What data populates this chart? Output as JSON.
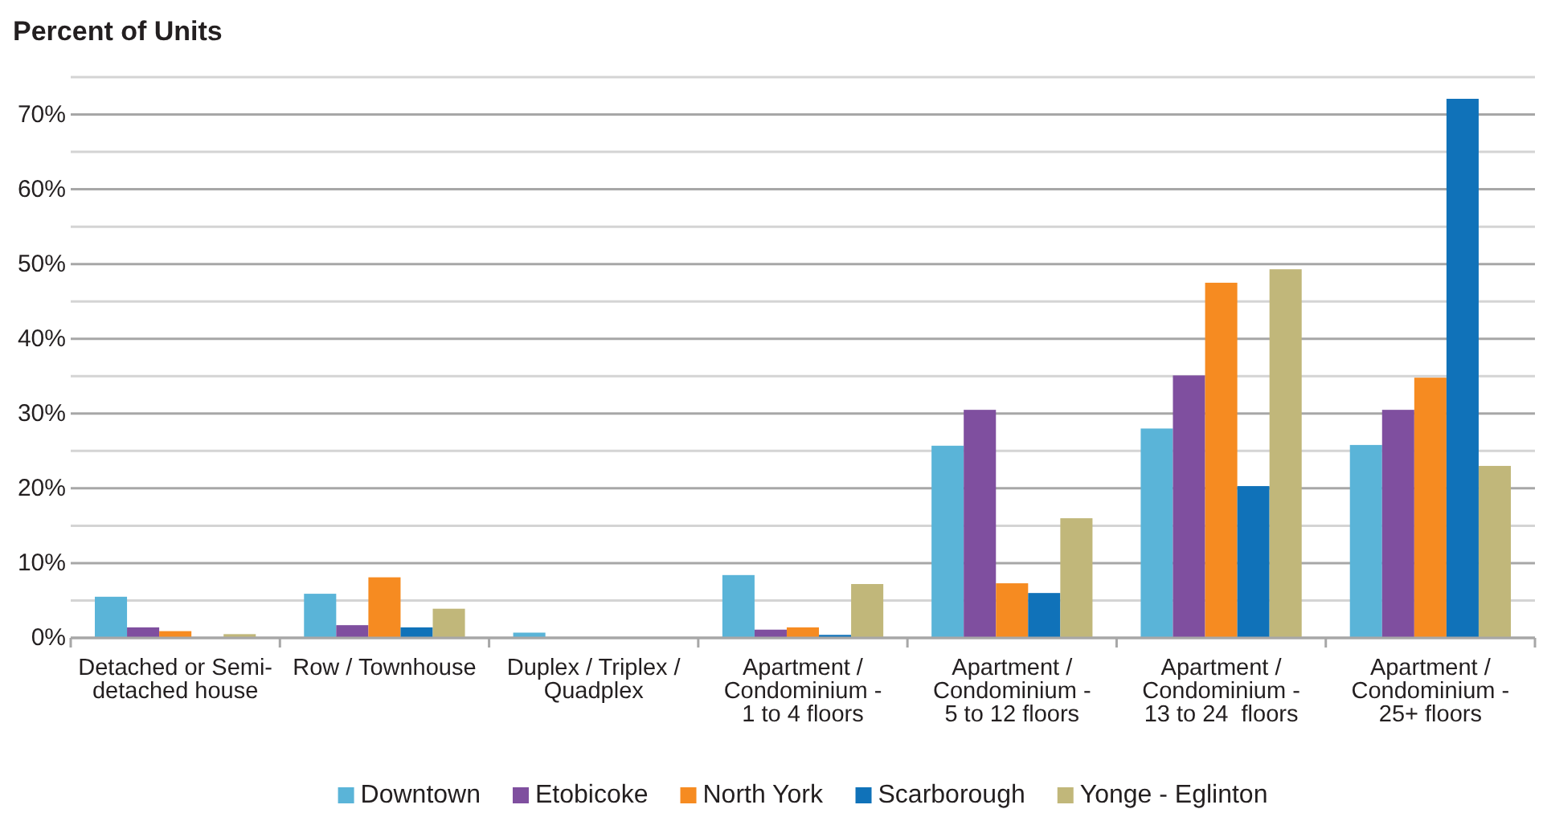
{
  "chart_data": {
    "type": "bar",
    "title": "Percent of Units",
    "categories": [
      "Detached or Semi-\ndetached house",
      "Row / Townhouse",
      "Duplex / Triplex /\nQuadplex",
      "Apartment /\nCondominium -\n1 to 4 floors",
      "Apartment /\nCondominium -\n5 to 12 floors",
      "Apartment /\nCondominium -\n13 to 24  floors",
      "Apartment /\nCondominium -\n25+ floors"
    ],
    "series": [
      {
        "name": "Downtown",
        "color": "#5ab4d8",
        "values": [
          5.5,
          5.9,
          0.7,
          8.4,
          25.7,
          28.0,
          25.8
        ]
      },
      {
        "name": "Etobicoke",
        "color": "#7f4f9f",
        "values": [
          1.4,
          1.7,
          0,
          1.1,
          30.5,
          35.1,
          30.5
        ]
      },
      {
        "name": "North York",
        "color": "#f68b21",
        "values": [
          0.9,
          8.1,
          0,
          1.4,
          7.3,
          47.5,
          34.8
        ]
      },
      {
        "name": "Scarborough",
        "color": "#1072b9",
        "values": [
          0,
          1.4,
          0,
          0.4,
          6.0,
          20.3,
          72.1
        ]
      },
      {
        "name": "Yonge - Eglinton",
        "color": "#c1b77a",
        "values": [
          0.5,
          3.9,
          0,
          7.2,
          16.0,
          49.3,
          23.0
        ]
      }
    ],
    "ylim": [
      0,
      75
    ],
    "yticks": [
      {
        "value": 0,
        "label": "0%"
      },
      {
        "value": 5,
        "label": null
      },
      {
        "value": 10,
        "label": "10%"
      },
      {
        "value": 15,
        "label": null
      },
      {
        "value": 20,
        "label": "20%"
      },
      {
        "value": 25,
        "label": null
      },
      {
        "value": 30,
        "label": "30%"
      },
      {
        "value": 35,
        "label": null
      },
      {
        "value": 40,
        "label": "40%"
      },
      {
        "value": 45,
        "label": null
      },
      {
        "value": 50,
        "label": "50%"
      },
      {
        "value": 55,
        "label": null
      },
      {
        "value": 60,
        "label": "60%"
      },
      {
        "value": 65,
        "label": null
      },
      {
        "value": 70,
        "label": "70%"
      },
      {
        "value": 75,
        "label": null
      }
    ],
    "grid": true,
    "legend": "bottom"
  }
}
